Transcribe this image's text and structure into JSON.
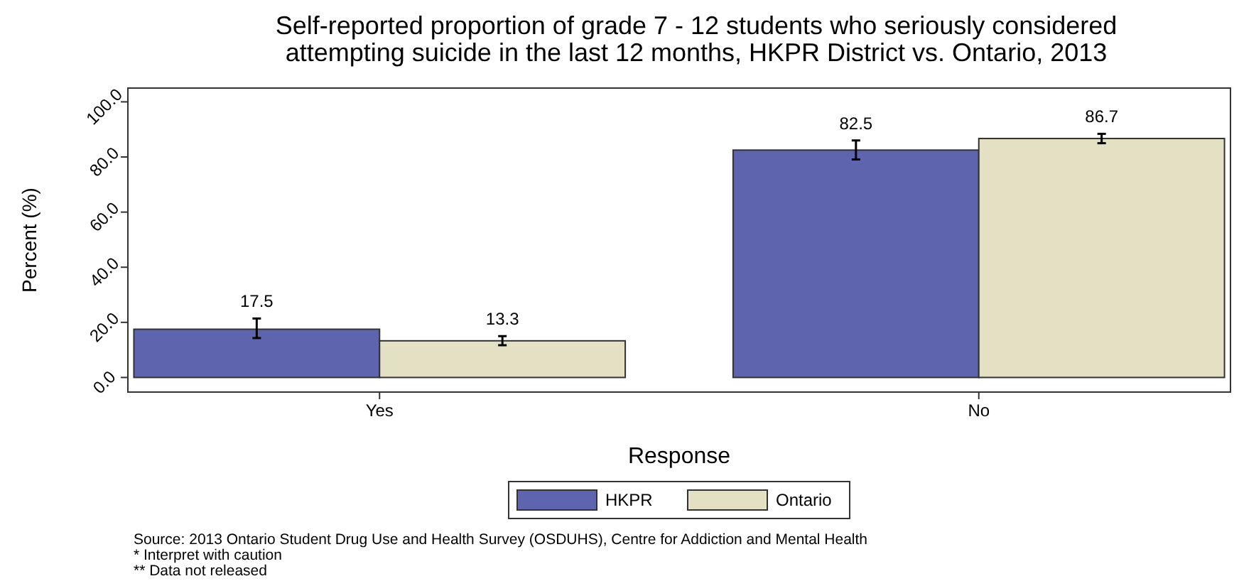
{
  "chart_data": {
    "type": "bar",
    "title": "Self-reported proportion of grade 7 - 12 students who seriously considered\nattempting suicide in the last 12 months, HKPR District vs. Ontario, 2013",
    "xlabel": "Response",
    "ylabel": "Percent (%)",
    "categories": [
      "Yes",
      "No"
    ],
    "series": [
      {
        "name": "HKPR",
        "color": "#5e64ae",
        "values": [
          17.5,
          82.5
        ],
        "errors": [
          [
            14.3,
            21.4
          ],
          [
            79.1,
            86.0
          ]
        ]
      },
      {
        "name": "Ontario",
        "color": "#e3e0c4",
        "values": [
          13.3,
          86.7
        ],
        "errors": [
          [
            11.7,
            15.0
          ],
          [
            85.0,
            88.4
          ]
        ]
      }
    ],
    "ylim": [
      -5.3,
      105
    ],
    "yticks": [
      {
        "value": 0,
        "label": "0.0"
      },
      {
        "value": 20,
        "label": "20.0"
      },
      {
        "value": 40,
        "label": "40.0"
      },
      {
        "value": 60,
        "label": "60.0"
      },
      {
        "value": 80,
        "label": "80.0"
      },
      {
        "value": 100,
        "label": "100.0"
      }
    ],
    "data_labels": true,
    "grid": false,
    "legend": "bottom",
    "annotations": [
      "Source: 2013 Ontario Student Drug Use and Health Survey (OSDUHS), Centre for Addiction and Mental Health",
      "* Interpret with caution",
      "** Data not released"
    ]
  }
}
